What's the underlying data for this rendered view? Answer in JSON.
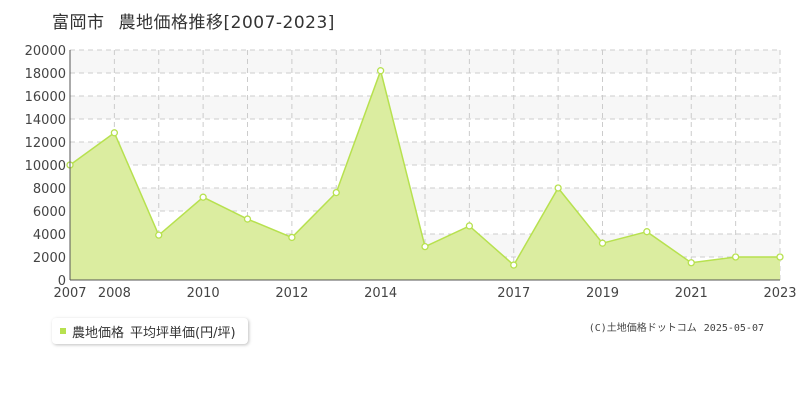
{
  "header": {
    "city": "富岡市",
    "title": "農地価格推移[2007-2023]"
  },
  "legend": {
    "label": "農地価格",
    "unit": "平均坪単価(円/坪)",
    "color": "#b7e14f"
  },
  "credit": {
    "source": "(C)土地価格ドットコム",
    "date": "2025-05-07"
  },
  "chart_data": {
    "type": "area",
    "x": [
      2007,
      2008,
      2009,
      2010,
      2011,
      2012,
      2013,
      2014,
      2015,
      2016,
      2017,
      2018,
      2019,
      2020,
      2021,
      2022,
      2023
    ],
    "series": [
      {
        "name": "農地価格",
        "values": [
          10000,
          12800,
          3900,
          7200,
          5300,
          3700,
          7600,
          18200,
          2900,
          4700,
          1300,
          8000,
          3200,
          4200,
          1500,
          2000,
          2000
        ]
      }
    ],
    "y_ticks": [
      0,
      2000,
      4000,
      6000,
      8000,
      10000,
      12000,
      14000,
      16000,
      18000,
      20000
    ],
    "x_tick_labels": [
      "2007",
      "2008",
      "2010",
      "2012",
      "2014",
      "2017",
      "2019",
      "2021",
      "2023"
    ],
    "ylim": [
      0,
      20000
    ],
    "xlim": [
      2007,
      2023
    ],
    "grid": true,
    "colors": {
      "fill": "#dbeda0",
      "line": "#b7e14f",
      "grid": "#cccccc",
      "band": "#f7f7f7"
    }
  }
}
